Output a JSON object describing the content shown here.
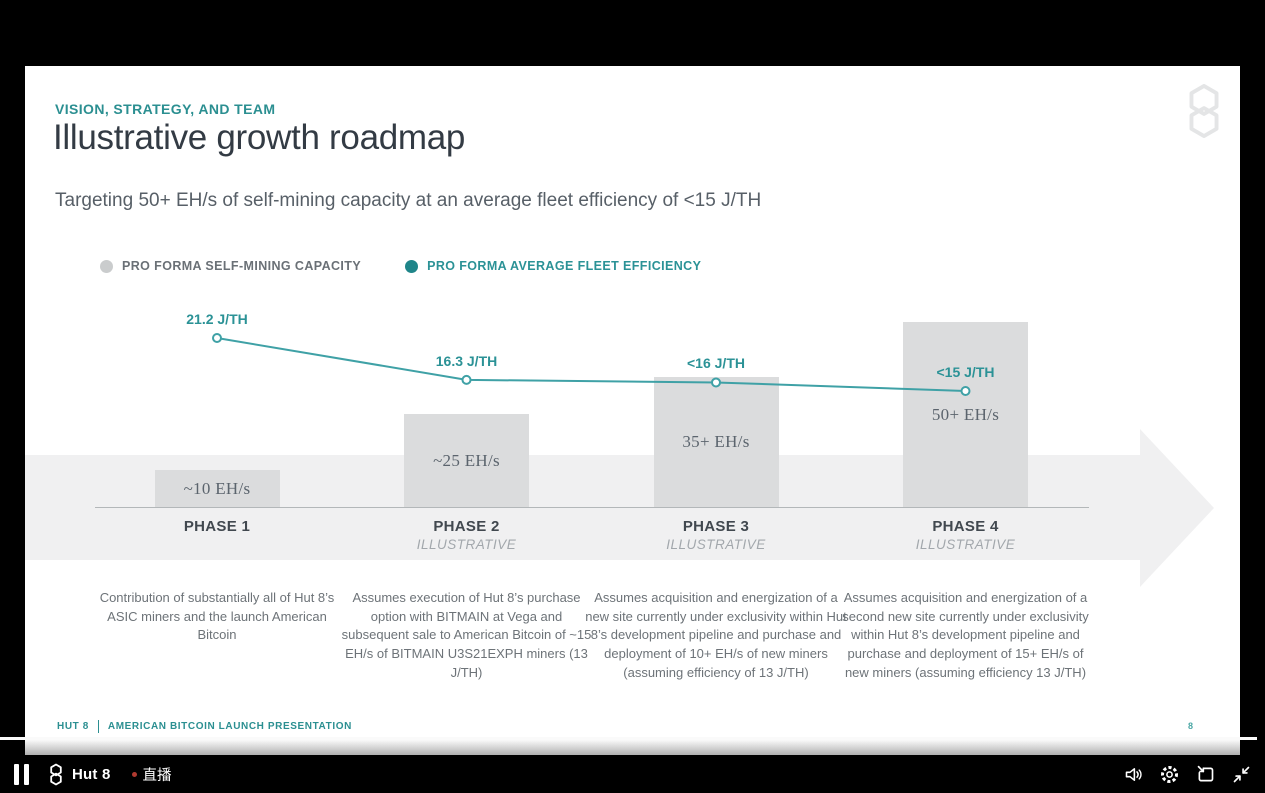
{
  "player": {
    "channel_name": "Hut 8",
    "live_badge": "直播",
    "icons": {
      "pause": "pause-icon",
      "channel_logo": "hut8-logo-icon",
      "volume": "volume-icon",
      "settings": "gear-icon",
      "mini_player": "mini-player-icon",
      "exit_fullscreen": "exit-fullscreen-icon"
    },
    "live_dot_color": "#b03a30"
  },
  "slide": {
    "eyebrow": "VISION, STRATEGY, AND TEAM",
    "title": "Illustrative growth roadmap",
    "subtitle": "Targeting 50+ EH/s of self-mining capacity at an average fleet efficiency of <15 J/TH",
    "logo": "hut8-logo",
    "legend": [
      {
        "label": "PRO FORMA SELF-MINING CAPACITY",
        "dot_color": "#cacccd",
        "text_color": "#6a7076"
      },
      {
        "label": "PRO FORMA AVERAGE FLEET EFFICIENCY",
        "dot_color": "#1f8589",
        "text_color": "#2b9296"
      }
    ],
    "footer": {
      "brand": "HUT 8",
      "title": "AMERICAN BITCOIN LAUNCH PRESENTATION",
      "page_number": "8"
    },
    "accent_teal": "#2b8f91",
    "line_teal": "#3fa1a6",
    "bar_gray": "#dbdcdd"
  },
  "chart_data": {
    "type": "bar",
    "subtype": "bar-plus-line-combo",
    "categories": [
      "PHASE 1",
      "PHASE 2",
      "PHASE 3",
      "PHASE 4"
    ],
    "phase_tags": [
      "",
      "ILLUSTRATIVE",
      "ILLUSTRATIVE",
      "ILLUSTRATIVE"
    ],
    "series": [
      {
        "name": "PRO FORMA SELF-MINING CAPACITY",
        "render": "bar",
        "unit": "EH/s",
        "values": [
          10,
          25,
          35,
          50
        ],
        "labels": [
          "~10 EH/s",
          "~25 EH/s",
          "35+ EH/s",
          "50+ EH/s"
        ]
      },
      {
        "name": "PRO FORMA AVERAGE FLEET EFFICIENCY",
        "render": "line",
        "unit": "J/TH",
        "values": [
          21.2,
          16.3,
          16,
          15
        ],
        "labels": [
          "21.2 J/TH",
          "16.3 J/TH",
          "<16 J/TH",
          "<15 J/TH"
        ]
      }
    ],
    "descriptions": [
      "Contribution of substantially all of Hut 8’s ASIC miners and the launch American Bitcoin",
      "Assumes execution of Hut 8’s purchase option with BITMAIN at Vega and subsequent sale to American Bitcoin of ~15 EH/s of BITMAIN U3S21EXPH miners (13 J/TH)",
      "Assumes acquisition and energization of a new site currently under exclusivity within Hut 8’s development pipeline and purchase and deployment of 10+ EH/s of new miners (assuming efficiency of 13 J/TH)",
      "Assumes acquisition and energization of a second new site currently under exclusivity within Hut 8’s development pipeline and purchase and deployment of 15+ EH/s of new miners (assuming efficiency 13 J/TH)",
      "legend_position: top-left",
      "grid: off"
    ]
  }
}
